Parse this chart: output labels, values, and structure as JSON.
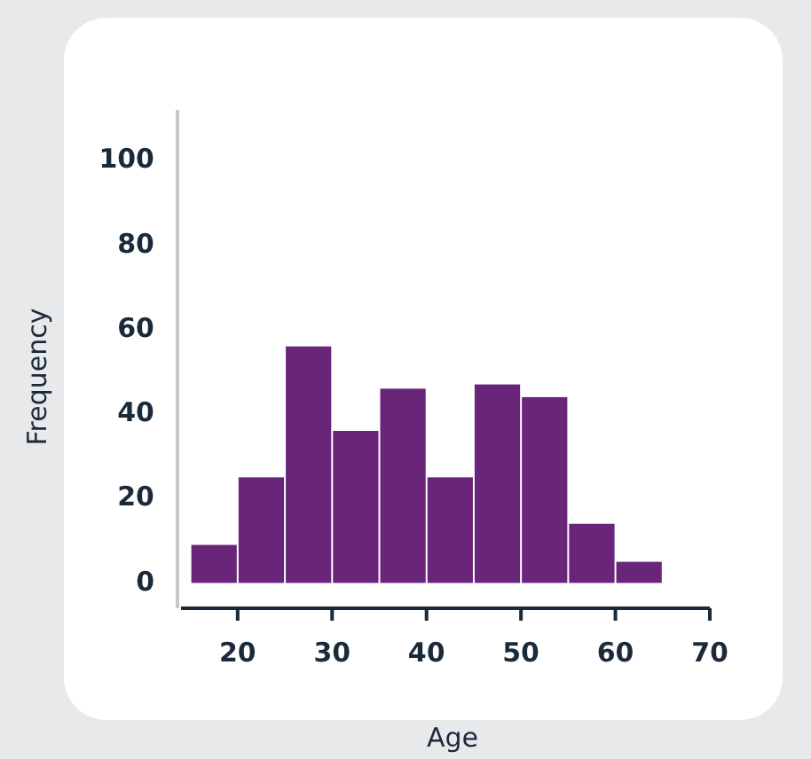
{
  "chart_data": {
    "type": "histogram",
    "xlabel": "Age",
    "ylabel": "Frequency",
    "bins": [
      15,
      20,
      25,
      30,
      35,
      40,
      45,
      50,
      55,
      60,
      65
    ],
    "values": [
      9,
      25,
      56,
      36,
      46,
      25,
      47,
      44,
      14,
      5
    ],
    "color": "#68257a",
    "xlim": [
      14,
      70
    ],
    "xticks": [
      20,
      30,
      40,
      50,
      60,
      70
    ],
    "ylim": [
      -6,
      112
    ],
    "yticks": [
      0,
      20,
      40,
      60,
      80,
      100
    ],
    "grid": false
  }
}
